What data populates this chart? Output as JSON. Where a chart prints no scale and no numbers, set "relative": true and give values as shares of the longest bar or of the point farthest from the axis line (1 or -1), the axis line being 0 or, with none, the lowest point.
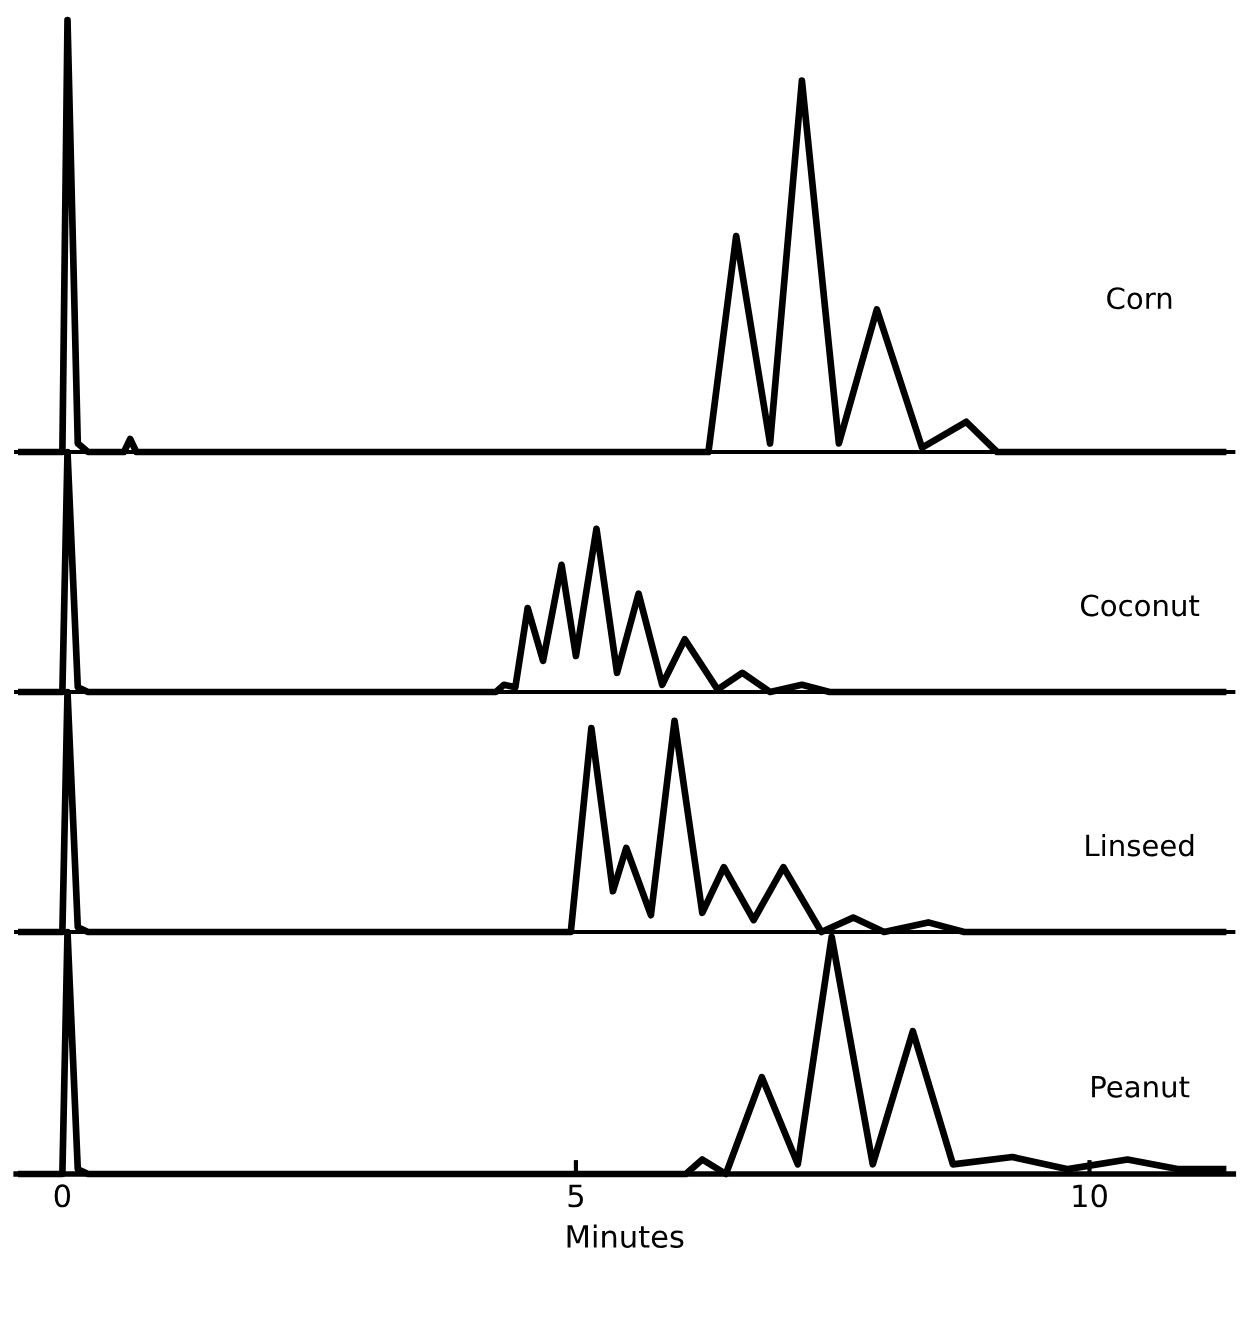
{
  "chart_data": [
    {
      "type": "line",
      "relative": true,
      "xlim": [
        -0.45,
        11.4
      ],
      "tick_labels": false,
      "legend": false,
      "series": [
        {
          "name": "Corn",
          "color": "#000000",
          "x": [
            -0.4,
            0,
            0.05,
            0.15,
            0.25,
            0.6,
            0.66,
            0.72,
            6.29,
            6.56,
            6.89,
            7.2,
            7.56,
            7.93,
            8.37,
            8.8,
            9.1,
            11.3
          ],
          "values": [
            0,
            0,
            1,
            0.02,
            0,
            0,
            0.03,
            0,
            0,
            0.5,
            0.02,
            0.86,
            0.02,
            0.33,
            0.01,
            0.07,
            0,
            0
          ]
        }
      ]
    },
    {
      "type": "line",
      "relative": true,
      "xlim": [
        -0.45,
        11.4
      ],
      "tick_labels": false,
      "legend": false,
      "series": [
        {
          "name": "Coconut",
          "color": "#000000",
          "x": [
            -0.4,
            0,
            0.05,
            0.15,
            0.25,
            4.22,
            4.3,
            4.41,
            4.53,
            4.68,
            4.86,
            5.0,
            5.2,
            5.4,
            5.61,
            5.84,
            6.06,
            6.38,
            6.62,
            6.89,
            7.2,
            7.47,
            11.3
          ],
          "values": [
            0,
            0,
            1,
            0.02,
            0,
            0,
            0.03,
            0.02,
            0.35,
            0.13,
            0.53,
            0.15,
            0.68,
            0.08,
            0.41,
            0.03,
            0.22,
            0.01,
            0.08,
            0,
            0.03,
            0,
            0
          ]
        }
      ]
    },
    {
      "type": "line",
      "relative": true,
      "xlim": [
        -0.45,
        11.4
      ],
      "tick_labels": false,
      "legend": false,
      "series": [
        {
          "name": "Linseed",
          "color": "#000000",
          "x": [
            -0.4,
            0,
            0.05,
            0.15,
            0.25,
            4.95,
            5.15,
            5.36,
            5.49,
            5.73,
            5.96,
            6.23,
            6.44,
            6.73,
            7.02,
            7.39,
            7.7,
            8.0,
            8.43,
            8.78,
            11.3
          ],
          "values": [
            0,
            0,
            1,
            0.02,
            0,
            0,
            0.85,
            0.17,
            0.35,
            0.07,
            0.88,
            0.08,
            0.27,
            0.05,
            0.27,
            0,
            0.06,
            0,
            0.04,
            0,
            0
          ]
        }
      ]
    },
    {
      "type": "line",
      "relative": true,
      "xlim": [
        -0.45,
        11.4
      ],
      "xticks": [
        0,
        5,
        10
      ],
      "xlabel": "Minutes",
      "tick_labels": "x",
      "legend": false,
      "series": [
        {
          "name": "Peanut",
          "color": "#000000",
          "x": [
            -0.4,
            0,
            0.05,
            0.15,
            0.25,
            6.07,
            6.23,
            6.46,
            6.81,
            7.16,
            7.49,
            7.89,
            8.28,
            8.67,
            9.25,
            9.79,
            10.37,
            10.87,
            11.3
          ],
          "values": [
            0,
            0,
            1,
            0.02,
            0,
            0,
            0.06,
            0,
            0.4,
            0.04,
            0.98,
            0.04,
            0.59,
            0.04,
            0.07,
            0.02,
            0.06,
            0.02,
            0.02
          ]
        }
      ]
    }
  ]
}
